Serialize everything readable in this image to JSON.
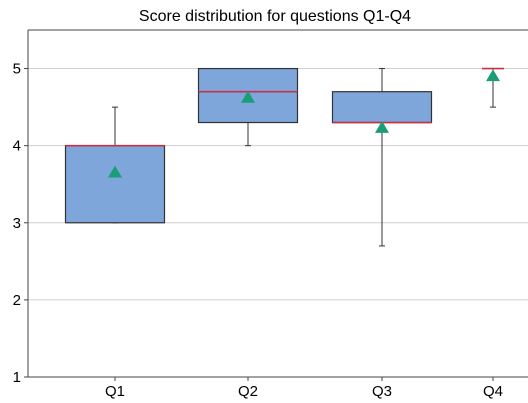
{
  "chart_data": {
    "type": "box",
    "title": "Score distribution for questions Q1-Q4",
    "xlabel": "",
    "ylabel": "",
    "ylim": [
      1,
      5.5
    ],
    "yticks": [
      1,
      2,
      3,
      4,
      5
    ],
    "grid": "horizontal",
    "categories": [
      "Q1",
      "Q2",
      "Q3",
      "Q4"
    ],
    "boxes": [
      {
        "category": "Q1",
        "whisker_low": 3.0,
        "q1": 3.0,
        "median": 4.0,
        "q3": 4.0,
        "whisker_high": 4.5,
        "mean": 3.65
      },
      {
        "category": "Q2",
        "whisker_low": 4.0,
        "q1": 4.3,
        "median": 4.7,
        "q3": 5.0,
        "whisker_high": 5.0,
        "mean": 4.62
      },
      {
        "category": "Q3",
        "whisker_low": 2.7,
        "q1": 4.3,
        "median": 4.3,
        "q3": 4.7,
        "whisker_high": 5.0,
        "mean": 4.23
      },
      {
        "category": "Q4",
        "whisker_low": 4.5,
        "q1": 5.0,
        "median": 5.0,
        "q3": 5.0,
        "whisker_high": 5.0,
        "mean": 4.9
      }
    ],
    "colors": {
      "box_fill": "#7ea6db",
      "box_edge": "#333333",
      "median": "#c8304a",
      "mean_marker": "#1a9e77",
      "whisker": "#333333",
      "grid": "#d0d0d0",
      "axis": "#444444"
    }
  }
}
